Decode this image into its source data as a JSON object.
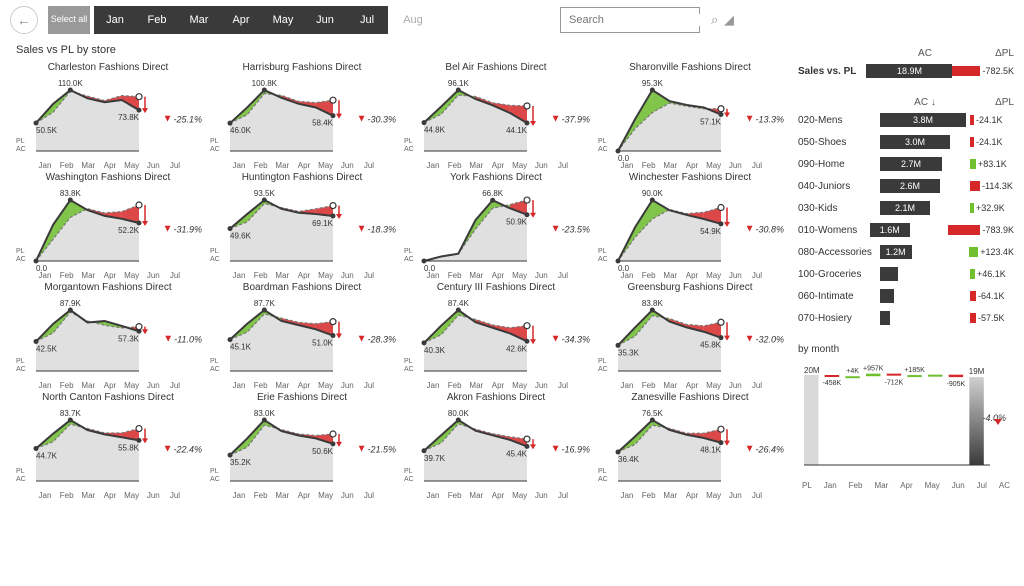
{
  "colors": {
    "dark": "#3a3a3a",
    "red": "#d62828",
    "green": "#6fbf2f",
    "lightgray": "#e8e8e8",
    "axis": "#666666",
    "bg": "#ffffff",
    "area_fill": "#e0e0e0"
  },
  "toolbar": {
    "select_all": "Select\nall",
    "months": [
      "Jan",
      "Feb",
      "Mar",
      "Apr",
      "May",
      "Jun",
      "Jul"
    ],
    "disabled_month": "Aug",
    "search_placeholder": "Search"
  },
  "section_title": "Sales vs PL by store",
  "xaxis_labels": [
    "Jan",
    "Feb",
    "Mar",
    "Apr",
    "May",
    "Jun",
    "Jul"
  ],
  "y_axis_labels": [
    "PL",
    "AC"
  ],
  "small_multiples": [
    {
      "title": "Charleston Fashions Direct",
      "start": "50.5K",
      "peak": "110.0K",
      "end": "73.8K",
      "pct": "-25.1%",
      "ac": [
        50.5,
        85,
        110,
        95,
        88,
        92,
        73.8
      ],
      "pl": [
        50.5,
        70,
        108,
        99,
        91,
        100,
        98
      ],
      "peak_idx": 2
    },
    {
      "title": "Harrisburg Fashions Direct",
      "start": "46.0K",
      "peak": "100.8K",
      "end": "58.4K",
      "pct": "-30.3%",
      "ac": [
        46,
        72,
        100.8,
        88,
        78,
        72,
        58.4
      ],
      "pl": [
        46,
        60,
        95,
        92,
        82,
        80,
        84
      ],
      "peak_idx": 2
    },
    {
      "title": "Bel Air Fashions Direct",
      "start": "44.8K",
      "peak": "96.1K",
      "end": "44.1K",
      "pct": "-37.9%",
      "ac": [
        44.8,
        70,
        96.1,
        82,
        72,
        60,
        44.1
      ],
      "pl": [
        44.8,
        58,
        88,
        86,
        76,
        72,
        71
      ],
      "peak_idx": 2
    },
    {
      "title": "Sharonville Fashions Direct",
      "start": "0.0",
      "peak": "95.3K",
      "end": "57.1K",
      "pct": "-13.3%",
      "ac": [
        0,
        50,
        95.3,
        78,
        72,
        68,
        57.1
      ],
      "pl": [
        0,
        35,
        60,
        75,
        70,
        66,
        66
      ],
      "peak_idx": 2
    },
    {
      "title": "Washington Fashions Direct",
      "start": "0.0",
      "peak": "83.8K",
      "end": "52.2K",
      "pct": "-31.9%",
      "ac": [
        0,
        50,
        83.8,
        70,
        62,
        58,
        52.2
      ],
      "pl": [
        0,
        30,
        60,
        72,
        66,
        68,
        77
      ],
      "peak_idx": 2
    },
    {
      "title": "Huntington Fashions Direct",
      "start": "49.6K",
      "peak": "93.5K",
      "end": "69.1K",
      "pct": "-18.3%",
      "ac": [
        49.6,
        72,
        93.5,
        80,
        74,
        72,
        69.1
      ],
      "pl": [
        49.6,
        60,
        88,
        82,
        76,
        80,
        85
      ],
      "peak_idx": 2
    },
    {
      "title": "York Fashions Direct",
      "start": "0.0",
      "peak": "66.8K",
      "end": "50.9K",
      "pct": "-23.5%",
      "ac": [
        0,
        5,
        8,
        45,
        66.8,
        58,
        50.9
      ],
      "pl": [
        0,
        5,
        8,
        35,
        58,
        62,
        67
      ],
      "peak_idx": 4
    },
    {
      "title": "Winchester Fashions Direct",
      "start": "0.0",
      "peak": "90.0K",
      "end": "54.9K",
      "pct": "-30.8%",
      "ac": [
        0,
        50,
        90,
        75,
        68,
        62,
        54.9
      ],
      "pl": [
        0,
        35,
        62,
        76,
        70,
        72,
        79
      ],
      "peak_idx": 2
    },
    {
      "title": "Morgantown Fashions Direct",
      "start": "42.5K",
      "peak": "87.9K",
      "end": "57.3K",
      "pct": "-11.0%",
      "ac": [
        42.5,
        68,
        87.9,
        70,
        72,
        65,
        57.3
      ],
      "pl": [
        42.5,
        55,
        85,
        72,
        66,
        62,
        64
      ],
      "peak_idx": 2
    },
    {
      "title": "Boardman Fashions Direct",
      "start": "45.1K",
      "peak": "87.7K",
      "end": "51.0K",
      "pct": "-28.3%",
      "ac": [
        45.1,
        68,
        87.7,
        72,
        66,
        60,
        51
      ],
      "pl": [
        45.1,
        56,
        82,
        76,
        70,
        68,
        71
      ],
      "peak_idx": 2
    },
    {
      "title": "Century III Fashions Direct",
      "start": "40.3K",
      "peak": "87.4K",
      "end": "42.6K",
      "pct": "-34.3%",
      "ac": [
        40.3,
        65,
        87.4,
        70,
        62,
        54,
        42.6
      ],
      "pl": [
        40.3,
        52,
        80,
        74,
        66,
        62,
        65
      ],
      "peak_idx": 2
    },
    {
      "title": "Greensburg Fashions Direct",
      "start": "35.3K",
      "peak": "83.8K",
      "end": "45.8K",
      "pct": "-32.0%",
      "ac": [
        35.3,
        60,
        83.8,
        68,
        60,
        54,
        45.8
      ],
      "pl": [
        35.3,
        48,
        76,
        72,
        64,
        62,
        67
      ],
      "peak_idx": 2
    },
    {
      "title": "North Canton Fashions Direct",
      "start": "44.7K",
      "peak": "83.7K",
      "end": "55.8K",
      "pct": "-22.4%",
      "ac": [
        44.7,
        65,
        83.7,
        70,
        64,
        60,
        55.8
      ],
      "pl": [
        44.7,
        54,
        78,
        72,
        66,
        66,
        72
      ],
      "peak_idx": 2
    },
    {
      "title": "Erie Fashions Direct",
      "start": "35.2K",
      "peak": "83.0K",
      "end": "50.6K",
      "pct": "-21.5%",
      "ac": [
        35.2,
        58,
        83,
        68,
        62,
        58,
        50.6
      ],
      "pl": [
        35.2,
        46,
        76,
        70,
        64,
        62,
        64
      ],
      "peak_idx": 2
    },
    {
      "title": "Akron Fashions Direct",
      "start": "39.7K",
      "peak": "80.0K",
      "end": "45.4K",
      "pct": "-16.9%",
      "ac": [
        39.7,
        60,
        80,
        66,
        60,
        54,
        45.4
      ],
      "pl": [
        39.7,
        50,
        75,
        68,
        62,
        58,
        55
      ],
      "peak_idx": 2
    },
    {
      "title": "Zanesville Fashions Direct",
      "start": "36.4K",
      "peak": "76.5K",
      "end": "48.1K",
      "pct": "-26.4%",
      "ac": [
        36.4,
        56,
        76.5,
        64,
        58,
        54,
        48.1
      ],
      "pl": [
        36.4,
        46,
        70,
        66,
        60,
        60,
        65
      ],
      "peak_idx": 2
    }
  ],
  "kpi_total": {
    "label": "Sales vs. PL",
    "ac_header": "AC",
    "delta_header": "ΔPL",
    "ac": "18.9M",
    "delta": "-782.5K",
    "ac_width": 86,
    "delta_width": 28,
    "delta_sign": "neg"
  },
  "categories": {
    "ac_header": "AC ↓",
    "delta_header": "ΔPL",
    "rows": [
      {
        "label": "020-Mens",
        "ac": "3.8M",
        "ac_w": 86,
        "delta": "-24.1K",
        "dw": 4,
        "sign": "neg"
      },
      {
        "label": "050-Shoes",
        "ac": "3.0M",
        "ac_w": 70,
        "delta": "-24.1K",
        "dw": 4,
        "sign": "neg"
      },
      {
        "label": "090-Home",
        "ac": "2.7M",
        "ac_w": 62,
        "delta": "+83.1K",
        "dw": 6,
        "sign": "pos"
      },
      {
        "label": "040-Juniors",
        "ac": "2.6M",
        "ac_w": 60,
        "delta": "-114.3K",
        "dw": 10,
        "sign": "neg"
      },
      {
        "label": "030-Kids",
        "ac": "2.1M",
        "ac_w": 50,
        "delta": "+32.9K",
        "dw": 4,
        "sign": "pos"
      },
      {
        "label": "010-Womens",
        "ac": "1.6M",
        "ac_w": 40,
        "delta": "-783.9K",
        "dw": 32,
        "sign": "neg"
      },
      {
        "label": "080-Accessories",
        "ac": "1.2M",
        "ac_w": 32,
        "delta": "+123.4K",
        "dw": 9,
        "sign": "pos"
      },
      {
        "label": "100-Groceries",
        "ac": "",
        "ac_w": 18,
        "delta": "+46.1K",
        "dw": 5,
        "sign": "pos"
      },
      {
        "label": "060-Intimate",
        "ac": "",
        "ac_w": 14,
        "delta": "-64.1K",
        "dw": 6,
        "sign": "neg"
      },
      {
        "label": "070-Hosiery",
        "ac": "",
        "ac_w": 10,
        "delta": "-57.5K",
        "dw": 6,
        "sign": "neg"
      }
    ]
  },
  "by_month": {
    "title": "by month",
    "start_label": "20M",
    "end_label": "19M",
    "pct": "-4.0%",
    "xaxis": [
      "PL",
      "Jan",
      "Feb",
      "Mar",
      "Apr",
      "May",
      "Jun",
      "Jul",
      "AC"
    ],
    "bars": [
      {
        "label": "",
        "val": 0,
        "sign": "start"
      },
      {
        "label": "-458K",
        "val": -458,
        "sign": "neg"
      },
      {
        "label": "+4K",
        "val": 4,
        "sign": "pos"
      },
      {
        "label": "+957K",
        "val": 957,
        "sign": "pos"
      },
      {
        "label": "-712K",
        "val": -712,
        "sign": "neg"
      },
      {
        "label": "+185K",
        "val": 185,
        "sign": "pos"
      },
      {
        "label": "",
        "val": 146,
        "sign": "pos"
      },
      {
        "label": "-905K",
        "val": -905,
        "sign": "neg"
      },
      {
        "label": "",
        "val": 0,
        "sign": "end"
      }
    ]
  }
}
